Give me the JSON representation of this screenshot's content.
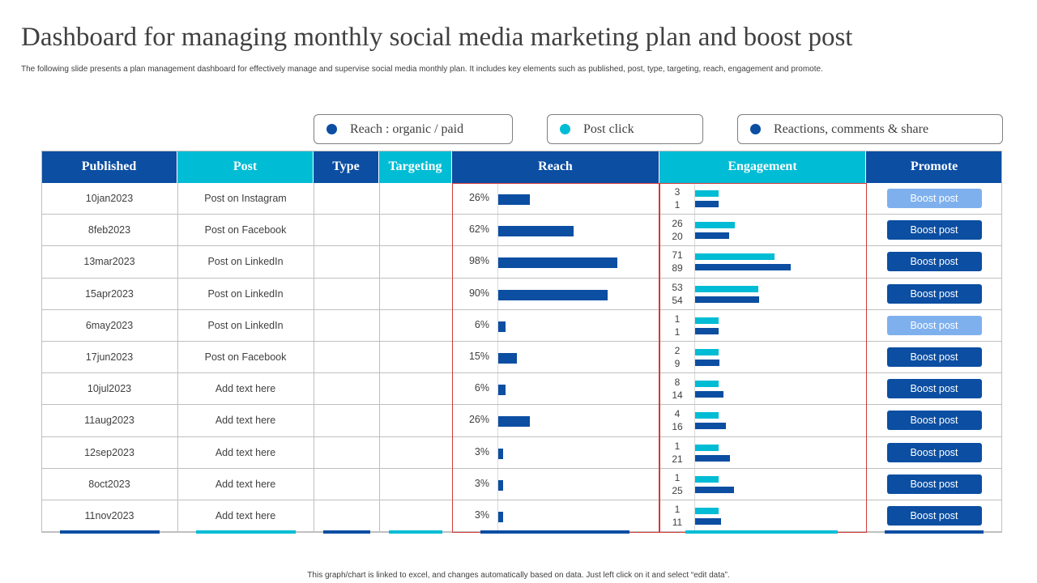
{
  "title": "Dashboard for managing monthly social media marketing plan and boost post",
  "subtitle": "The following slide presents a plan management dashboard for effectively manage and supervise social media monthly plan. It includes key elements such as published, post, type, targeting, reach, engagement and promote.",
  "legend": [
    {
      "label": "Reach : organic / paid",
      "color": "#0b4ea2"
    },
    {
      "label": "Post click",
      "color": "#00bcd4"
    },
    {
      "label": "Reactions, comments & share",
      "color": "#0b4ea2"
    }
  ],
  "headers": {
    "published": "Published",
    "post": "Post",
    "type": "Type",
    "targeting": "Targeting",
    "reach": "Reach",
    "engagement": "Engagement",
    "promote": "Promote"
  },
  "colors": {
    "dark_blue": "#0b4ea2",
    "cyan": "#00bcd4",
    "faded_blue": "#7fb0ee",
    "red_outline": "#d43a3a"
  },
  "icons": {
    "legend_marker": "dot-icon"
  },
  "rows": [
    {
      "published": "10jan2023",
      "post": "Post on Instagram",
      "reach_pct": 26,
      "reach_label": "26%",
      "post_click": 3,
      "reactions": 1,
      "promote_label": "Boost post",
      "promote_state": "faded"
    },
    {
      "published": "8feb2023",
      "post": "Post on Facebook",
      "reach_pct": 62,
      "reach_label": "62%",
      "post_click": 26,
      "reactions": 20,
      "promote_label": "Boost post",
      "promote_state": "active"
    },
    {
      "published": "13mar2023",
      "post": "Post on LinkedIn",
      "reach_pct": 98,
      "reach_label": "98%",
      "post_click": 71,
      "reactions": 89,
      "promote_label": "Boost post",
      "promote_state": "active"
    },
    {
      "published": "15apr2023",
      "post": "Post on LinkedIn",
      "reach_pct": 90,
      "reach_label": "90%",
      "post_click": 53,
      "reactions": 54,
      "promote_label": "Boost post",
      "promote_state": "active"
    },
    {
      "published": "6may2023",
      "post": "Post on LinkedIn",
      "reach_pct": 6,
      "reach_label": "6%",
      "post_click": 1,
      "reactions": 1,
      "promote_label": "Boost post",
      "promote_state": "faded"
    },
    {
      "published": "17jun2023",
      "post": "Post on Facebook",
      "reach_pct": 15,
      "reach_label": "15%",
      "post_click": 2,
      "reactions": 9,
      "promote_label": "Boost post",
      "promote_state": "active"
    },
    {
      "published": "10jul2023",
      "post": "Add text here",
      "reach_pct": 6,
      "reach_label": "6%",
      "post_click": 8,
      "reactions": 14,
      "promote_label": "Boost post",
      "promote_state": "active"
    },
    {
      "published": "11aug2023",
      "post": "Add text here",
      "reach_pct": 26,
      "reach_label": "26%",
      "post_click": 4,
      "reactions": 16,
      "promote_label": "Boost post",
      "promote_state": "active"
    },
    {
      "published": "12sep2023",
      "post": "Add text here",
      "reach_pct": 3,
      "reach_label": "3%",
      "post_click": 1,
      "reactions": 21,
      "promote_label": "Boost post",
      "promote_state": "active"
    },
    {
      "published": "8oct2023",
      "post": "Add text here",
      "reach_pct": 3,
      "reach_label": "3%",
      "post_click": 1,
      "reactions": 25,
      "promote_label": "Boost post",
      "promote_state": "active"
    },
    {
      "published": "11nov2023",
      "post": "Add text here",
      "reach_pct": 3,
      "reach_label": "3%",
      "post_click": 1,
      "reactions": 11,
      "promote_label": "Boost post",
      "promote_state": "active"
    }
  ],
  "footer": "This graph/chart is linked to excel, and changes automatically based on data. Just left click on it and select “edit data”."
}
